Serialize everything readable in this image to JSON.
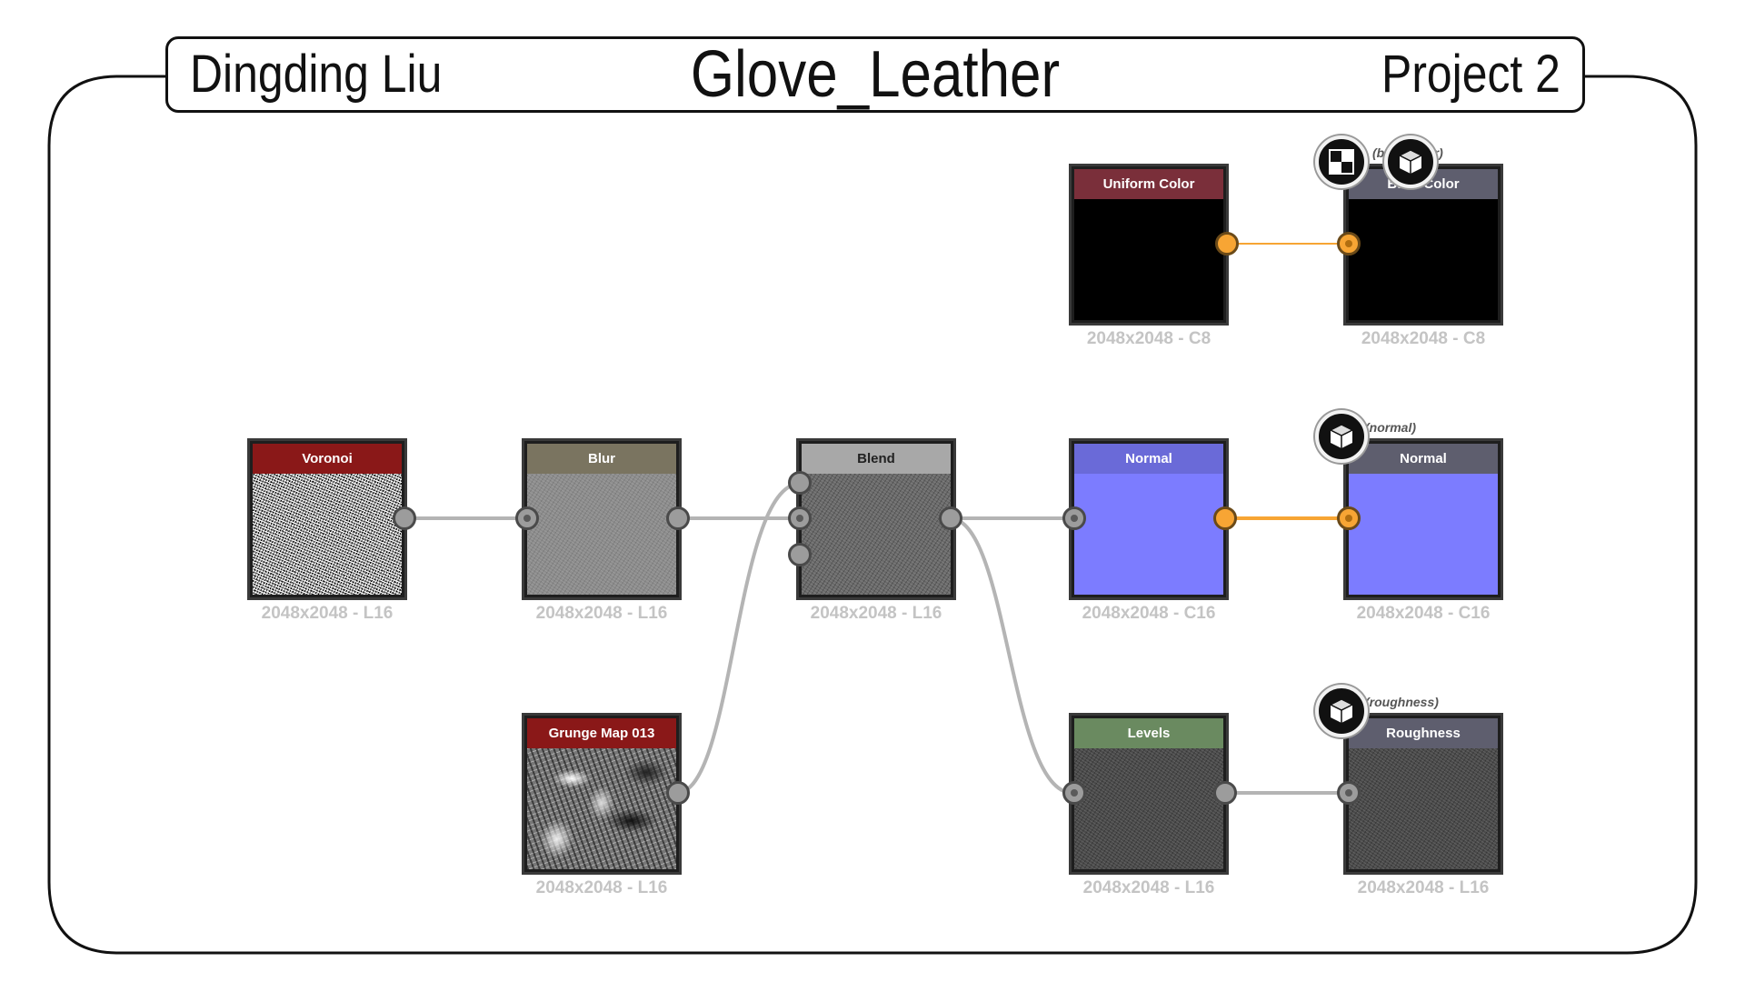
{
  "header": {
    "author": "Dingding Liu",
    "title": "Glove_Leather",
    "project": "Project 2"
  },
  "nodes": {
    "uniform_color": {
      "title": "Uniform Color",
      "resolution": "2048x2048 - C8",
      "header_color": "#7a2f3a"
    },
    "out_basecolor": {
      "title": "Base Color",
      "resolution": "2048x2048 - C8",
      "header_color": "#5e5e6e",
      "output_label": "(baseColor)"
    },
    "voronoi": {
      "title": "Voronoi",
      "resolution": "2048x2048 - L16",
      "header_color": "#8a1818"
    },
    "blur": {
      "title": "Blur",
      "resolution": "2048x2048 - L16",
      "header_color": "#7a7460"
    },
    "blend": {
      "title": "Blend",
      "resolution": "2048x2048 - L16",
      "header_color": "#a8a8a8"
    },
    "normal": {
      "title": "Normal",
      "resolution": "2048x2048 - C16",
      "header_color": "#6a6ad8"
    },
    "out_normal": {
      "title": "Normal",
      "resolution": "2048x2048 - C16",
      "header_color": "#5e5e6e",
      "output_label": "(normal)"
    },
    "grunge": {
      "title": "Grunge Map 013",
      "resolution": "2048x2048 - L16",
      "header_color": "#8a1818"
    },
    "levels": {
      "title": "Levels",
      "resolution": "2048x2048 - L16",
      "header_color": "#6a8a60"
    },
    "out_roughness": {
      "title": "Roughness",
      "resolution": "2048x2048 - L16",
      "header_color": "#5e5e6e",
      "output_label": "(roughness)"
    }
  },
  "colors": {
    "link_grey": "#b4b4b4",
    "link_orange": "#f7a534",
    "port_grey": "#9c9c9c",
    "port_orange": "#f7a534"
  },
  "icons": [
    "checker-icon",
    "cube-icon"
  ]
}
